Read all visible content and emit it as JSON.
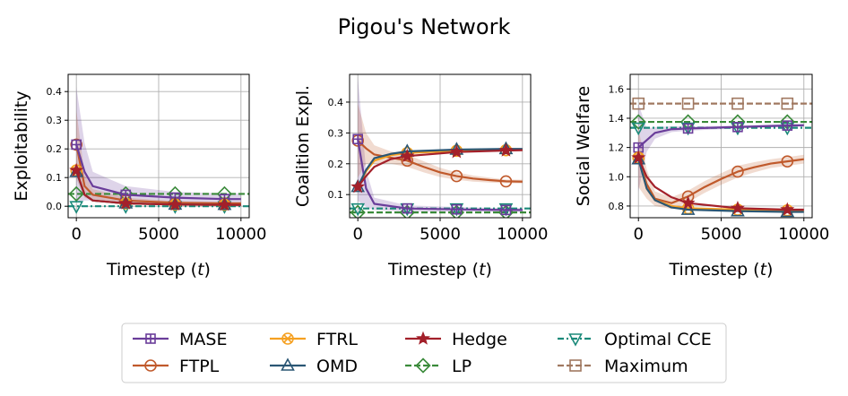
{
  "title": "Pigou's Network",
  "x_ticks": [
    0,
    5000,
    10000
  ],
  "xlabel_text": "Timestep (",
  "xlabel_var": "t",
  "xlabel_close": ")",
  "legend": [
    {
      "name": "MASE",
      "color": "#6a3d9a",
      "marker": "plus-square",
      "dash": "solid"
    },
    {
      "name": "FTPL",
      "color": "#c0592b",
      "marker": "circle",
      "dash": "solid"
    },
    {
      "name": "FTRL",
      "color": "#f5a020",
      "marker": "x-circle",
      "dash": "solid"
    },
    {
      "name": "OMD",
      "color": "#2a5674",
      "marker": "triangle-up",
      "dash": "solid"
    },
    {
      "name": "Hedge",
      "color": "#a3202a",
      "marker": "star",
      "dash": "solid"
    },
    {
      "name": "LP",
      "color": "#3a8a3a",
      "marker": "diamond",
      "dash": "dashed"
    },
    {
      "name": "Optimal CCE",
      "color": "#1b8a7a",
      "marker": "triangle-down",
      "dash": "dashdot"
    },
    {
      "name": "Maximum",
      "color": "#a07860",
      "marker": "square",
      "dash": "dashed"
    }
  ],
  "chart_data": [
    {
      "type": "line",
      "ylabel": "Exploitability",
      "xlabel": "Timestep (t)",
      "xlim": [
        -500,
        10500
      ],
      "ylim": [
        -0.04,
        0.46
      ],
      "y_ticks": [
        0.0,
        0.1,
        0.2,
        0.3,
        0.4
      ],
      "y_tick_labels": [
        "0.0",
        "0.1",
        "0.2",
        "0.3",
        "0.4"
      ],
      "grid": true,
      "series": [
        {
          "name": "MASE",
          "x": [
            0,
            500,
            1000,
            3000,
            6000,
            9000,
            10000
          ],
          "y": [
            0.215,
            0.12,
            0.07,
            0.04,
            0.03,
            0.025,
            0.025
          ],
          "band": [
            0.2,
            0.1,
            0.05,
            0.03,
            0.02,
            0.02,
            0.02
          ],
          "markers_at": [
            0,
            3000,
            6000,
            9000
          ]
        },
        {
          "name": "FTPL",
          "x": [
            0,
            500,
            1000,
            3000,
            6000,
            9000,
            10000
          ],
          "y": [
            0.215,
            0.07,
            0.04,
            0.02,
            0.012,
            0.01,
            0.01
          ],
          "band": [
            0.12,
            0.04,
            0.02,
            0.01,
            0.006,
            0.005,
            0.005
          ],
          "markers_at": [
            0,
            3000,
            6000,
            9000
          ]
        },
        {
          "name": "FTRL",
          "x": [
            0,
            500,
            1000,
            3000,
            6000,
            9000,
            10000
          ],
          "y": [
            0.125,
            0.04,
            0.02,
            0.01,
            0.006,
            0.005,
            0.005
          ],
          "markers_at": [
            0,
            3000,
            6000,
            9000
          ]
        },
        {
          "name": "OMD",
          "x": [
            0,
            500,
            1000,
            3000,
            6000,
            9000,
            10000
          ],
          "y": [
            0.12,
            0.04,
            0.02,
            0.01,
            0.006,
            0.005,
            0.005
          ],
          "markers_at": [
            0,
            3000,
            6000,
            9000
          ]
        },
        {
          "name": "Hedge",
          "x": [
            0,
            500,
            1000,
            3000,
            6000,
            9000,
            10000
          ],
          "y": [
            0.125,
            0.04,
            0.02,
            0.01,
            0.006,
            0.005,
            0.005
          ],
          "markers_at": [
            0,
            3000,
            6000,
            9000
          ]
        },
        {
          "name": "LP",
          "x": [
            -500,
            10500
          ],
          "y": [
            0.043,
            0.043
          ],
          "markers_at": [
            0,
            3000,
            6000,
            9000
          ]
        },
        {
          "name": "Optimal CCE",
          "x": [
            -500,
            10500
          ],
          "y": [
            0.0,
            0.0
          ],
          "markers_at": [
            0,
            3000,
            6000,
            9000
          ]
        }
      ]
    },
    {
      "type": "line",
      "ylabel": "Coalition Expl.",
      "xlabel": "Timestep (t)",
      "xlim": [
        -500,
        10500
      ],
      "ylim": [
        0.025,
        0.49
      ],
      "y_ticks": [
        0.1,
        0.2,
        0.3,
        0.4
      ],
      "y_tick_labels": [
        "0.1",
        "0.2",
        "0.3",
        "0.4"
      ],
      "grid": true,
      "series": [
        {
          "name": "MASE",
          "x": [
            0,
            500,
            1000,
            3000,
            6000,
            9000,
            10000
          ],
          "y": [
            0.28,
            0.12,
            0.07,
            0.055,
            0.052,
            0.05,
            0.05
          ],
          "band": [
            0.2,
            0.06,
            0.02,
            0.01,
            0.008,
            0.006,
            0.006
          ],
          "markers_at": [
            0,
            3000,
            6000,
            9000
          ]
        },
        {
          "name": "FTPL",
          "x": [
            0,
            500,
            1000,
            2000,
            3000,
            4000,
            5000,
            6000,
            7000,
            8000,
            9000,
            10000
          ],
          "y": [
            0.275,
            0.25,
            0.23,
            0.22,
            0.21,
            0.19,
            0.172,
            0.16,
            0.152,
            0.147,
            0.143,
            0.142
          ],
          "band": [
            0.12,
            0.05,
            0.03,
            0.02,
            0.02,
            0.018,
            0.015,
            0.012,
            0.01,
            0.008,
            0.006,
            0.006
          ],
          "markers_at": [
            0,
            3000,
            6000,
            9000
          ]
        },
        {
          "name": "FTRL",
          "x": [
            0,
            500,
            1000,
            2000,
            3000,
            6000,
            9000,
            10000
          ],
          "y": [
            0.125,
            0.175,
            0.21,
            0.228,
            0.235,
            0.242,
            0.244,
            0.245
          ],
          "markers_at": [
            3000,
            6000,
            9000
          ]
        },
        {
          "name": "OMD",
          "x": [
            0,
            500,
            1000,
            2000,
            3000,
            6000,
            9000,
            10000
          ],
          "y": [
            0.125,
            0.18,
            0.218,
            0.232,
            0.24,
            0.246,
            0.248,
            0.248
          ],
          "markers_at": [
            0,
            3000,
            6000,
            9000
          ]
        },
        {
          "name": "Hedge",
          "x": [
            0,
            500,
            1000,
            2000,
            3000,
            6000,
            9000,
            10000
          ],
          "y": [
            0.125,
            0.16,
            0.19,
            0.215,
            0.225,
            0.238,
            0.243,
            0.244
          ],
          "markers_at": [
            0,
            3000,
            6000,
            9000
          ]
        },
        {
          "name": "LP",
          "x": [
            -500,
            10500
          ],
          "y": [
            0.042,
            0.042
          ],
          "markers_at": [
            0,
            3000,
            6000,
            9000
          ]
        },
        {
          "name": "Optimal CCE",
          "x": [
            -500,
            10500
          ],
          "y": [
            0.055,
            0.055
          ],
          "markers_at": [
            0,
            3000,
            6000,
            9000
          ]
        }
      ]
    },
    {
      "type": "line",
      "ylabel": "Social Welfare",
      "xlabel": "Timestep (t)",
      "xlim": [
        -500,
        10500
      ],
      "ylim": [
        0.72,
        1.7
      ],
      "y_ticks": [
        0.8,
        1.0,
        1.2,
        1.4,
        1.6
      ],
      "y_tick_labels": [
        "0.8",
        "1.0",
        "1.2",
        "1.4",
        "1.6"
      ],
      "grid": true,
      "series": [
        {
          "name": "MASE",
          "x": [
            0,
            500,
            1000,
            2000,
            3000,
            6000,
            9000,
            10000
          ],
          "y": [
            1.2,
            1.25,
            1.3,
            1.325,
            1.33,
            1.34,
            1.35,
            1.352
          ],
          "band": [
            0.3,
            0.08,
            0.04,
            0.02,
            0.015,
            0.01,
            0.01,
            0.01
          ],
          "markers_at": [
            0,
            3000,
            6000,
            9000
          ]
        },
        {
          "name": "FTPL",
          "x": [
            0,
            500,
            1000,
            2000,
            3000,
            4000,
            5000,
            6000,
            7000,
            8000,
            9000,
            10000
          ],
          "y": [
            1.13,
            0.95,
            0.85,
            0.82,
            0.865,
            0.93,
            0.985,
            1.035,
            1.065,
            1.09,
            1.105,
            1.12
          ],
          "band": [
            0.2,
            0.1,
            0.05,
            0.04,
            0.04,
            0.04,
            0.04,
            0.04,
            0.035,
            0.03,
            0.03,
            0.03
          ],
          "markers_at": [
            0,
            3000,
            6000,
            9000
          ]
        },
        {
          "name": "FTRL",
          "x": [
            0,
            500,
            1000,
            2000,
            3000,
            6000,
            9000,
            10000
          ],
          "y": [
            1.13,
            0.92,
            0.84,
            0.8,
            0.785,
            0.775,
            0.77,
            0.77
          ],
          "markers_at": [
            0,
            3000,
            6000,
            9000
          ]
        },
        {
          "name": "OMD",
          "x": [
            0,
            500,
            1000,
            2000,
            3000,
            6000,
            9000,
            10000
          ],
          "y": [
            1.12,
            0.92,
            0.84,
            0.79,
            0.775,
            0.765,
            0.76,
            0.76
          ],
          "markers_at": [
            0,
            3000,
            6000,
            9000
          ]
        },
        {
          "name": "Hedge",
          "x": [
            0,
            500,
            1000,
            2000,
            3000,
            6000,
            9000,
            10000
          ],
          "y": [
            1.13,
            1.0,
            0.93,
            0.86,
            0.82,
            0.785,
            0.775,
            0.775
          ],
          "markers_at": [
            0,
            3000,
            6000,
            9000
          ]
        },
        {
          "name": "LP",
          "x": [
            -500,
            10500
          ],
          "y": [
            1.375,
            1.375
          ],
          "markers_at": [
            0,
            3000,
            6000,
            9000
          ]
        },
        {
          "name": "Optimal CCE",
          "x": [
            -500,
            10500
          ],
          "y": [
            1.335,
            1.335
          ],
          "markers_at": [
            0,
            3000,
            6000,
            9000
          ]
        },
        {
          "name": "Maximum",
          "x": [
            -500,
            10500
          ],
          "y": [
            1.5,
            1.5
          ],
          "markers_at": [
            0,
            3000,
            6000,
            9000
          ]
        }
      ]
    }
  ]
}
